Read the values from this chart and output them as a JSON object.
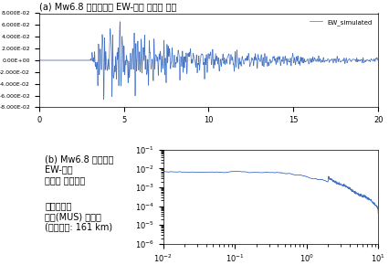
{
  "title_a": "(a) Mw6.8 모사지진파 EW-성분 가속도 파형",
  "title_b": "(b) Mw6.8 모사지진\nEW-성분\n가속도 스펙트럼",
  "annotation": "오대산지진\n문산(MUS) 관측소\n(진앙거리: 161 km)",
  "legend_label": "EW_simulated",
  "waveform_xlim": [
    0,
    20
  ],
  "waveform_ylim": [
    -0.08,
    0.08
  ],
  "waveform_yticks": [
    -0.08,
    -0.06,
    -0.04,
    -0.02,
    0.0,
    0.02,
    0.04,
    0.06,
    0.08
  ],
  "spectrum_xlim_log": [
    -2,
    1
  ],
  "spectrum_ylim_log": [
    -6,
    -1
  ],
  "line_color": "#4472C4",
  "background_color": "#ffffff",
  "title_fontsize": 7,
  "tick_fontsize": 6,
  "annotation_fontsize": 7
}
